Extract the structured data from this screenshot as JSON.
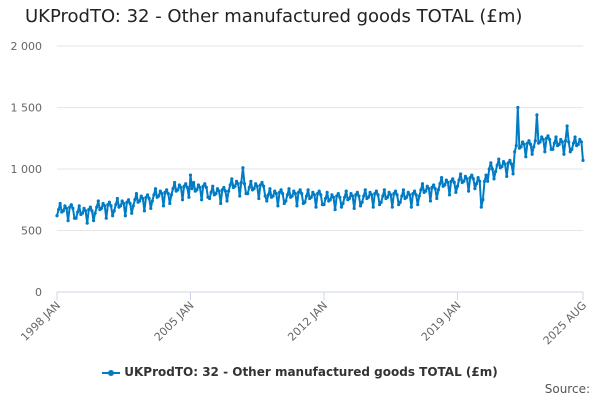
{
  "chart_data": {
    "type": "line",
    "title": "UKProdTO: 32 - Other manufactured goods TOTAL (£m)",
    "xlabel": "",
    "ylabel": "",
    "x_start": "1998 JAN",
    "x_end": "2025 AUG",
    "x_ticks": [
      "1998 JAN",
      "2005 JAN",
      "2012 JAN",
      "2019 JAN",
      "2025 AUG"
    ],
    "y_ticks": [
      "0",
      "500",
      "1 000",
      "1 500",
      "2 000"
    ],
    "ylim": [
      0,
      2000
    ],
    "grid": true,
    "legend_position": "bottom",
    "color": "#007bc4",
    "series": [
      {
        "name": "UKProdTO: 32 - Other manufactured goods TOTAL (£m)",
        "values": [
          620,
          670,
          720,
          650,
          660,
          700,
          680,
          580,
          690,
          710,
          680,
          600,
          600,
          650,
          700,
          630,
          640,
          680,
          660,
          560,
          670,
          690,
          660,
          580,
          640,
          690,
          740,
          670,
          680,
          720,
          700,
          600,
          710,
          730,
          700,
          620,
          660,
          710,
          760,
          690,
          700,
          740,
          720,
          620,
          730,
          750,
          720,
          640,
          700,
          750,
          800,
          730,
          740,
          780,
          760,
          660,
          770,
          790,
          760,
          680,
          740,
          790,
          840,
          770,
          780,
          820,
          800,
          700,
          810,
          830,
          800,
          720,
          790,
          840,
          890,
          820,
          830,
          870,
          850,
          750,
          860,
          880,
          850,
          770,
          950,
          840,
          890,
          820,
          830,
          870,
          850,
          750,
          860,
          880,
          850,
          770,
          760,
          810,
          860,
          790,
          800,
          840,
          820,
          720,
          830,
          850,
          820,
          740,
          820,
          870,
          920,
          850,
          860,
          900,
          880,
          780,
          890,
          1010,
          880,
          800,
          800,
          850,
          900,
          830,
          840,
          880,
          860,
          760,
          870,
          890,
          860,
          780,
          740,
          790,
          840,
          770,
          780,
          820,
          800,
          700,
          810,
          830,
          800,
          720,
          740,
          790,
          840,
          770,
          780,
          820,
          800,
          700,
          810,
          830,
          800,
          720,
          730,
          780,
          830,
          760,
          770,
          810,
          790,
          690,
          800,
          820,
          790,
          710,
          710,
          760,
          810,
          740,
          750,
          790,
          770,
          670,
          780,
          800,
          770,
          690,
          720,
          770,
          820,
          750,
          760,
          800,
          780,
          680,
          790,
          810,
          780,
          700,
          730,
          780,
          830,
          760,
          770,
          810,
          790,
          690,
          800,
          820,
          790,
          710,
          730,
          780,
          830,
          760,
          770,
          810,
          790,
          690,
          800,
          820,
          790,
          710,
          730,
          780,
          830,
          760,
          770,
          810,
          790,
          690,
          800,
          820,
          790,
          710,
          780,
          830,
          880,
          810,
          820,
          860,
          840,
          740,
          850,
          870,
          840,
          760,
          830,
          880,
          930,
          860,
          870,
          910,
          890,
          790,
          900,
          920,
          890,
          810,
          860,
          910,
          960,
          890,
          900,
          940,
          920,
          820,
          930,
          950,
          920,
          840,
          880,
          930,
          900,
          690,
          750,
          900,
          950,
          900,
          1000,
          1050,
          1000,
          920,
          980,
          1030,
          1080,
          1010,
          1020,
          1060,
          1040,
          940,
          1050,
          1070,
          1040,
          960,
          1140,
          1190,
          1500,
          1170,
          1180,
          1220,
          1200,
          1100,
          1210,
          1230,
          1200,
          1120,
          1180,
          1230,
          1440,
          1210,
          1220,
          1260,
          1240,
          1140,
          1250,
          1270,
          1240,
          1160,
          1160,
          1210,
          1260,
          1190,
          1200,
          1240,
          1220,
          1120,
          1230,
          1350,
          1220,
          1140,
          1160,
          1210,
          1260,
          1190,
          1200,
          1240,
          1220,
          1070
        ]
      }
    ]
  },
  "source_label": "Source:"
}
